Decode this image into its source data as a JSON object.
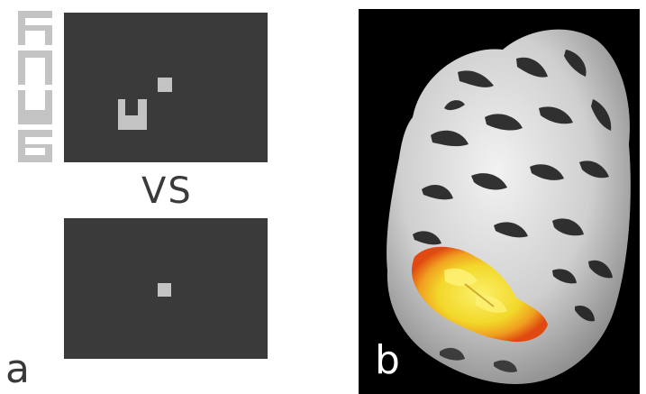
{
  "panel_a": {
    "label": "a",
    "comparison_text": "VS"
  },
  "panel_b": {
    "label": "b"
  },
  "colors": {
    "screen": "#3a3a3a",
    "stimulus": "#c3c3c3",
    "activation_outer": "#e85a10",
    "activation_inner": "#f5e63a",
    "brain": "#d8d8d8"
  },
  "icons": [
    "letter-stimulus-strip",
    "cortex-surface-render"
  ]
}
